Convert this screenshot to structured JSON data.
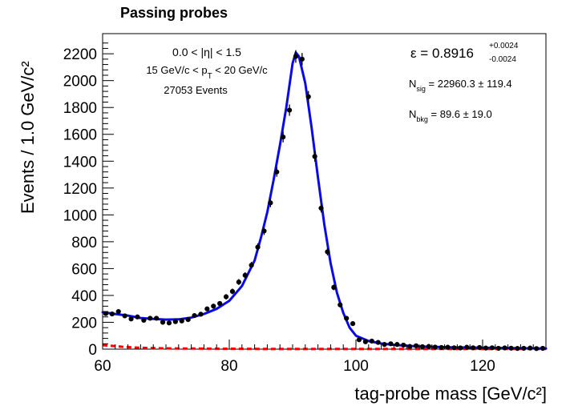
{
  "chart_data": {
    "type": "scatter",
    "title": "Passing probes",
    "xlabel": "tag-probe mass [GeV/c²]",
    "ylabel": "Events / 1.0 GeV/c²",
    "xlim": [
      60,
      130
    ],
    "ylim": [
      0,
      2350
    ],
    "xticks": [
      60,
      80,
      100,
      120
    ],
    "yticks": [
      0,
      200,
      400,
      600,
      800,
      1000,
      1200,
      1400,
      1600,
      1800,
      2000,
      2200
    ],
    "annotations": {
      "eta": "0.0 < |η| < 1.5",
      "pt": "15 GeV/c < p_T < 20 GeV/c",
      "events": "27053 Events",
      "eff": "ε = 0.8916",
      "eff_up": "+0.0024",
      "eff_down": "-0.0024",
      "nsig": "N_sig = 22960.3 ± 119.4",
      "nbkg": "N_bkg = 89.6 ± 19.0"
    },
    "series": [
      {
        "name": "",
        "kind": "data",
        "color": "#000000",
        "x": [
          60.5,
          61.5,
          62.5,
          63.5,
          64.5,
          65.5,
          66.5,
          67.5,
          68.5,
          69.5,
          70.5,
          71.5,
          72.5,
          73.5,
          74.5,
          75.5,
          76.5,
          77.5,
          78.5,
          79.5,
          80.5,
          81.5,
          82.5,
          83.5,
          84.5,
          85.5,
          86.5,
          87.5,
          88.5,
          89.5,
          90.5,
          91.5,
          92.5,
          93.5,
          94.5,
          95.5,
          96.5,
          97.5,
          98.5,
          99.5,
          100.5,
          101.5,
          102.5,
          103.5,
          104.5,
          105.5,
          106.5,
          107.5,
          108.5,
          109.5,
          110.5,
          111.5,
          112.5,
          113.5,
          114.5,
          115.5,
          116.5,
          117.5,
          118.5,
          119.5,
          120.5,
          121.5,
          122.5,
          123.5,
          124.5,
          125.5,
          126.5,
          127.5,
          128.5,
          129.5
        ],
        "y": [
          265,
          262,
          280,
          248,
          225,
          240,
          215,
          230,
          230,
          200,
          195,
          205,
          210,
          220,
          250,
          260,
          300,
          320,
          340,
          390,
          430,
          500,
          550,
          625,
          760,
          880,
          1090,
          1320,
          1580,
          1780,
          2180,
          2160,
          1880,
          1435,
          1050,
          725,
          460,
          330,
          230,
          190,
          70,
          55,
          60,
          50,
          35,
          40,
          35,
          30,
          20,
          25,
          18,
          20,
          15,
          12,
          14,
          10,
          9,
          14,
          10,
          12,
          8,
          10,
          6,
          9,
          7,
          5,
          6,
          8,
          4,
          6
        ],
        "err": [
          16,
          16,
          17,
          16,
          15,
          15,
          15,
          15,
          15,
          14,
          14,
          14,
          14,
          15,
          16,
          16,
          17,
          18,
          18,
          20,
          21,
          22,
          23,
          25,
          28,
          30,
          33,
          36,
          40,
          42,
          47,
          46,
          43,
          38,
          32,
          27,
          21,
          18,
          15,
          14,
          8,
          7,
          8,
          7,
          6,
          6,
          6,
          5,
          4,
          5,
          4,
          4,
          4,
          3,
          4,
          3,
          3,
          4,
          3,
          3,
          3,
          3,
          2,
          3,
          3,
          2,
          2,
          3,
          2,
          2
        ]
      },
      {
        "name": "",
        "kind": "fit",
        "color": "#0a0ae6",
        "x": [
          60,
          62,
          64,
          66,
          68,
          70,
          72,
          74,
          76,
          78,
          80,
          82,
          84,
          85,
          86,
          87,
          88,
          89,
          90,
          90.5,
          91,
          92,
          93,
          94,
          95,
          96,
          97,
          98,
          99,
          100,
          102,
          104,
          106,
          108,
          110,
          115,
          120,
          125,
          130
        ],
        "y": [
          275,
          262,
          250,
          232,
          225,
          220,
          222,
          235,
          262,
          300,
          360,
          470,
          660,
          830,
          1020,
          1260,
          1520,
          1800,
          2130,
          2210,
          2180,
          1980,
          1650,
          1280,
          930,
          640,
          420,
          270,
          160,
          100,
          60,
          42,
          32,
          25,
          20,
          14,
          10,
          7,
          5
        ]
      },
      {
        "name": "",
        "kind": "background",
        "color": "#ff0000",
        "x": [
          60,
          61,
          62,
          63,
          64,
          65,
          66,
          68,
          70,
          72,
          75,
          80,
          85,
          90,
          95,
          100,
          110,
          120,
          130
        ],
        "y": [
          30,
          26,
          22,
          18,
          15,
          12,
          10,
          8,
          6,
          5,
          4,
          3,
          2,
          2,
          2,
          2,
          2,
          2,
          2
        ]
      }
    ]
  }
}
